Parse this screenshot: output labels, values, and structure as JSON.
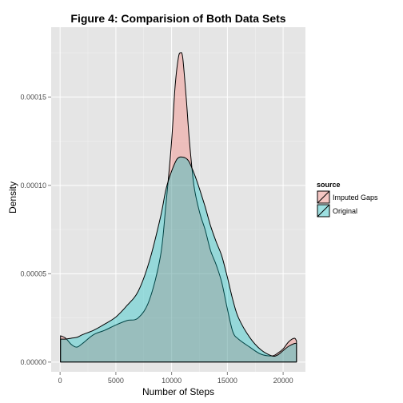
{
  "chart_data": {
    "type": "area",
    "subtype": "density",
    "title": "Figure 4: Comparision of Both Data Sets",
    "xlabel": "Number of Steps",
    "ylabel": "Density",
    "xlim": [
      -800,
      22000
    ],
    "ylim": [
      -5.5e-06,
      0.0001895
    ],
    "x_ticks": [
      0,
      5000,
      10000,
      15000,
      20000
    ],
    "x_tick_labels": [
      "0",
      "5000",
      "10000",
      "15000",
      "20000"
    ],
    "y_ticks": [
      0,
      5e-05,
      0.0001,
      0.00015
    ],
    "y_tick_labels": [
      "0.00000",
      "0.00005",
      "0.00010",
      "0.00015"
    ],
    "grid": true,
    "legend": {
      "title": "source",
      "placement": "right"
    },
    "series": [
      {
        "name": "Imputed Gaps",
        "color": "#F8766D",
        "x": [
          41,
          500,
          1000,
          1500,
          2000,
          3000,
          4000,
          5000,
          6000,
          7000,
          8000,
          9000,
          9500,
          10000,
          10300,
          10600,
          10800,
          11000,
          11300,
          11600,
          12000,
          12500,
          13000,
          13500,
          14000,
          14500,
          15000,
          15500,
          16000,
          17000,
          18000,
          19000,
          19500,
          20000,
          20500,
          21000,
          21194
        ],
        "y": [
          1.49e-05,
          1.35e-05,
          1e-05,
          8.5e-06,
          1.05e-05,
          1.55e-05,
          1.8e-05,
          2.1e-05,
          2.35e-05,
          2.5e-05,
          3.5e-05,
          6e-05,
          9e-05,
          0.000125,
          0.000155,
          0.000172,
          0.000175,
          0.000172,
          0.00015,
          0.000125,
          0.0001,
          8.5e-05,
          7.5e-05,
          6.3e-05,
          5.5e-05,
          4.5e-05,
          3e-05,
          1.7e-05,
          1.3e-05,
          8.5e-06,
          4.5e-06,
          3.5e-06,
          5e-06,
          7.5e-06,
          1.15e-05,
          1.35e-05,
          1.2e-05
        ]
      },
      {
        "name": "Original",
        "color": "#00BFC4",
        "x": [
          41,
          500,
          1000,
          1500,
          2000,
          3000,
          4000,
          5000,
          6000,
          7000,
          8000,
          9000,
          9500,
          10000,
          10500,
          11000,
          11500,
          12000,
          12500,
          13000,
          13500,
          14000,
          14500,
          15000,
          15500,
          16000,
          17000,
          18000,
          19000,
          19500,
          20000,
          20500,
          21000,
          21194
        ],
        "y": [
          1.3e-05,
          1.3e-05,
          1.35e-05,
          1.4e-05,
          1.55e-05,
          1.8e-05,
          2.15e-05,
          2.55e-05,
          3.2e-05,
          4e-05,
          5.7e-05,
          8.2e-05,
          9.8e-05,
          0.000108,
          0.000115,
          0.000116,
          0.000114,
          0.000107,
          9.8e-05,
          8.8e-05,
          7.7e-05,
          6.8e-05,
          6e-05,
          4.8e-05,
          3.5e-05,
          2.5e-05,
          1.4e-05,
          7e-06,
          3.5e-06,
          4e-06,
          6.5e-06,
          9e-06,
          1.05e-05,
          1.05e-05
        ]
      }
    ]
  }
}
